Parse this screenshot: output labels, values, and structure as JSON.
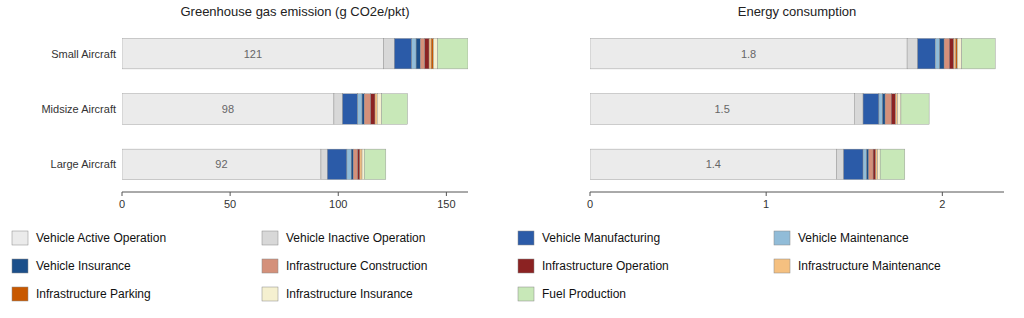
{
  "chart_data": [
    {
      "type": "bar",
      "orientation": "horizontal",
      "stacked": true,
      "grid": false,
      "legend": "bottom",
      "title": "Greenhouse gas emission (g CO2e/pkt)",
      "categories": [
        "Small Aircraft",
        "Midsize Aircraft",
        "Large Aircraft"
      ],
      "xlim": [
        0,
        160
      ],
      "xticks": [
        0,
        50,
        100,
        150
      ],
      "series": [
        {
          "name": "Vehicle Active Operation",
          "color": "#ebebeb",
          "values": [
            121,
            98,
            92
          ],
          "data_labels": true
        },
        {
          "name": "Vehicle Inactive Operation",
          "color": "#d8d8d8",
          "values": [
            5,
            4,
            3
          ]
        },
        {
          "name": "Vehicle Manufacturing",
          "color": "#2b5ba8",
          "values": [
            8,
            7,
            9
          ]
        },
        {
          "name": "Vehicle Maintenance",
          "color": "#91bcd8",
          "values": [
            2,
            2,
            2
          ]
        },
        {
          "name": "Vehicle Insurance",
          "color": "#1b4f8a",
          "values": [
            2,
            1,
            1
          ]
        },
        {
          "name": "Infrastructure Construction",
          "color": "#d4907a",
          "values": [
            2,
            3,
            2
          ]
        },
        {
          "name": "Infrastructure Operation",
          "color": "#8b2222",
          "values": [
            2,
            2,
            1
          ]
        },
        {
          "name": "Infrastructure Maintenance",
          "color": "#f5c080",
          "values": [
            1,
            1,
            1
          ]
        },
        {
          "name": "Infrastructure Parking",
          "color": "#c85800",
          "values": [
            1,
            0,
            0
          ]
        },
        {
          "name": "Infrastructure Insurance",
          "color": "#f5f0d0",
          "values": [
            2,
            2,
            1
          ]
        },
        {
          "name": "Fuel Production",
          "color": "#c8e8b8",
          "values": [
            14,
            12,
            10
          ]
        }
      ]
    },
    {
      "type": "bar",
      "orientation": "horizontal",
      "stacked": true,
      "grid": false,
      "tick_labels": "x",
      "title": "Energy consumption",
      "categories": [
        "Small Aircraft",
        "Midsize Aircraft",
        "Large Aircraft"
      ],
      "xlim": [
        0,
        2.35
      ],
      "xticks": [
        0,
        1,
        2
      ],
      "series": [
        {
          "name": "Vehicle Active Operation",
          "color": "#ebebeb",
          "values": [
            1.8,
            1.5,
            1.4
          ],
          "data_labels": true
        },
        {
          "name": "Vehicle Inactive Operation",
          "color": "#d8d8d8",
          "values": [
            0.06,
            0.05,
            0.04
          ]
        },
        {
          "name": "Vehicle Manufacturing",
          "color": "#2b5ba8",
          "values": [
            0.1,
            0.09,
            0.11
          ]
        },
        {
          "name": "Vehicle Maintenance",
          "color": "#91bcd8",
          "values": [
            0.025,
            0.02,
            0.02
          ]
        },
        {
          "name": "Vehicle Insurance",
          "color": "#1b4f8a",
          "values": [
            0.025,
            0.015,
            0.012
          ]
        },
        {
          "name": "Infrastructure Construction",
          "color": "#d4907a",
          "values": [
            0.03,
            0.035,
            0.025
          ]
        },
        {
          "name": "Infrastructure Operation",
          "color": "#8b2222",
          "values": [
            0.025,
            0.025,
            0.015
          ]
        },
        {
          "name": "Infrastructure Maintenance",
          "color": "#f5c080",
          "values": [
            0.012,
            0.01,
            0.01
          ]
        },
        {
          "name": "Infrastructure Parking",
          "color": "#c85800",
          "values": [
            0.008,
            0.0,
            0.0
          ]
        },
        {
          "name": "Infrastructure Insurance",
          "color": "#f5f0d0",
          "values": [
            0.025,
            0.02,
            0.015
          ]
        },
        {
          "name": "Fuel Production",
          "color": "#c8e8b8",
          "values": [
            0.19,
            0.16,
            0.14
          ]
        }
      ]
    }
  ]
}
